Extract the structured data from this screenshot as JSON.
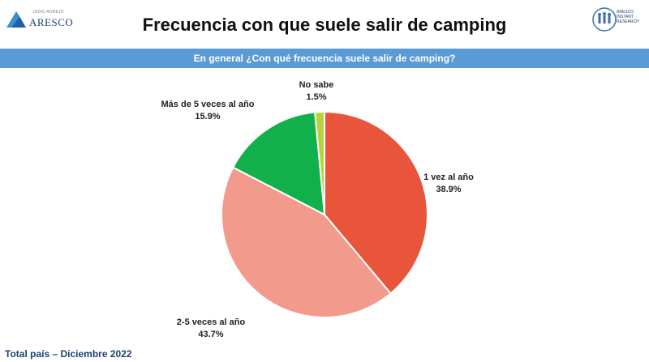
{
  "header": {
    "title": "Frecuencia con que suele salir de camping",
    "question": "En general ¿Con qué frecuencia suele salir de camping?"
  },
  "logos": {
    "left_top": "JUDIO AUREJO",
    "left_brand": "ARESCO",
    "right_text": "ARESCO INSTANT RESEARCH"
  },
  "footer": {
    "text": "Total país – Diciembre 2022"
  },
  "colors": {
    "banner": "#5b9bd5",
    "title": "#111111",
    "footer": "#1f3f6f"
  },
  "chart_data": {
    "type": "pie",
    "slices": [
      {
        "label": "No sabe",
        "value": 1.5,
        "display": "1.5%",
        "color": "#b7d33b"
      },
      {
        "label": "1 vez al año",
        "value": 38.9,
        "display": "38.9%",
        "color": "#e8553b"
      },
      {
        "label": "2-5 veces al año",
        "value": 43.7,
        "display": "43.7%",
        "color": "#f29b8c"
      },
      {
        "label": "Más de 5 veces al año",
        "value": 15.9,
        "display": "15.9%",
        "color": "#12b04a"
      }
    ]
  }
}
